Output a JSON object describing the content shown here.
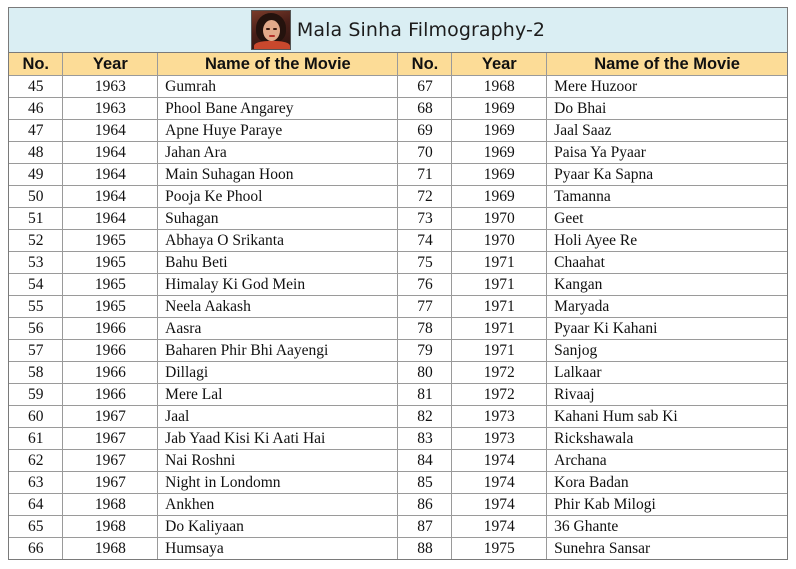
{
  "title": "Mala Sinha Filmography-2",
  "headers": {
    "no": "No.",
    "year": "Year",
    "movie": "Name of the Movie"
  },
  "rows": [
    {
      "left": {
        "no": "45",
        "year": "1963",
        "movie": "Gumrah"
      },
      "right": {
        "no": "67",
        "year": "1968",
        "movie": "Mere Huzoor"
      }
    },
    {
      "left": {
        "no": "46",
        "year": "1963",
        "movie": "Phool Bane Angarey"
      },
      "right": {
        "no": "68",
        "year": "1969",
        "movie": "Do Bhai"
      }
    },
    {
      "left": {
        "no": "47",
        "year": "1964",
        "movie": "Apne Huye Paraye"
      },
      "right": {
        "no": "69",
        "year": "1969",
        "movie": "Jaal Saaz"
      }
    },
    {
      "left": {
        "no": "48",
        "year": "1964",
        "movie": "Jahan Ara"
      },
      "right": {
        "no": "70",
        "year": "1969",
        "movie": "Paisa Ya Pyaar"
      }
    },
    {
      "left": {
        "no": "49",
        "year": "1964",
        "movie": "Main Suhagan Hoon"
      },
      "right": {
        "no": "71",
        "year": "1969",
        "movie": "Pyaar Ka Sapna"
      }
    },
    {
      "left": {
        "no": "50",
        "year": "1964",
        "movie": "Pooja Ke Phool"
      },
      "right": {
        "no": "72",
        "year": "1969",
        "movie": "Tamanna"
      }
    },
    {
      "left": {
        "no": "51",
        "year": "1964",
        "movie": "Suhagan"
      },
      "right": {
        "no": "73",
        "year": "1970",
        "movie": "Geet"
      }
    },
    {
      "left": {
        "no": "52",
        "year": "1965",
        "movie": "Abhaya O Srikanta"
      },
      "right": {
        "no": "74",
        "year": "1970",
        "movie": "Holi Ayee Re"
      }
    },
    {
      "left": {
        "no": "53",
        "year": "1965",
        "movie": "Bahu Beti"
      },
      "right": {
        "no": "75",
        "year": "1971",
        "movie": "Chaahat"
      }
    },
    {
      "left": {
        "no": "54",
        "year": "1965",
        "movie": "Himalay Ki God Mein"
      },
      "right": {
        "no": "76",
        "year": "1971",
        "movie": "Kangan"
      }
    },
    {
      "left": {
        "no": "55",
        "year": "1965",
        "movie": "Neela Aakash"
      },
      "right": {
        "no": "77",
        "year": "1971",
        "movie": "Maryada"
      }
    },
    {
      "left": {
        "no": "56",
        "year": "1966",
        "movie": "Aasra"
      },
      "right": {
        "no": "78",
        "year": "1971",
        "movie": "Pyaar Ki Kahani"
      }
    },
    {
      "left": {
        "no": "57",
        "year": "1966",
        "movie": "Baharen Phir Bhi Aayengi"
      },
      "right": {
        "no": "79",
        "year": "1971",
        "movie": "Sanjog"
      }
    },
    {
      "left": {
        "no": "58",
        "year": "1966",
        "movie": "Dillagi"
      },
      "right": {
        "no": "80",
        "year": "1972",
        "movie": "Lalkaar"
      }
    },
    {
      "left": {
        "no": "59",
        "year": "1966",
        "movie": "Mere Lal"
      },
      "right": {
        "no": "81",
        "year": "1972",
        "movie": "Rivaaj"
      }
    },
    {
      "left": {
        "no": "60",
        "year": "1967",
        "movie": "Jaal"
      },
      "right": {
        "no": "82",
        "year": "1973",
        "movie": "Kahani Hum sab Ki"
      }
    },
    {
      "left": {
        "no": "61",
        "year": "1967",
        "movie": "Jab Yaad Kisi Ki Aati Hai"
      },
      "right": {
        "no": "83",
        "year": "1973",
        "movie": "Rickshawala"
      }
    },
    {
      "left": {
        "no": "62",
        "year": "1967",
        "movie": "Nai Roshni"
      },
      "right": {
        "no": "84",
        "year": "1974",
        "movie": "Archana"
      }
    },
    {
      "left": {
        "no": "63",
        "year": "1967",
        "movie": "Night in Londomn"
      },
      "right": {
        "no": "85",
        "year": "1974",
        "movie": "Kora Badan"
      }
    },
    {
      "left": {
        "no": "64",
        "year": "1968",
        "movie": "Ankhen"
      },
      "right": {
        "no": "86",
        "year": "1974",
        "movie": "Phir Kab Milogi"
      }
    },
    {
      "left": {
        "no": "65",
        "year": "1968",
        "movie": "Do Kaliyaan"
      },
      "right": {
        "no": "87",
        "year": "1974",
        "movie": "36 Ghante"
      }
    },
    {
      "left": {
        "no": "66",
        "year": "1968",
        "movie": "Humsaya"
      },
      "right": {
        "no": "88",
        "year": "1975",
        "movie": "Sunehra Sansar"
      }
    }
  ],
  "colors": {
    "title_bg": "#daeef3",
    "header_bg": "#fcdc97",
    "grid": "#9a9a9a"
  },
  "icons": {
    "portrait": "portrait-photo-icon"
  }
}
